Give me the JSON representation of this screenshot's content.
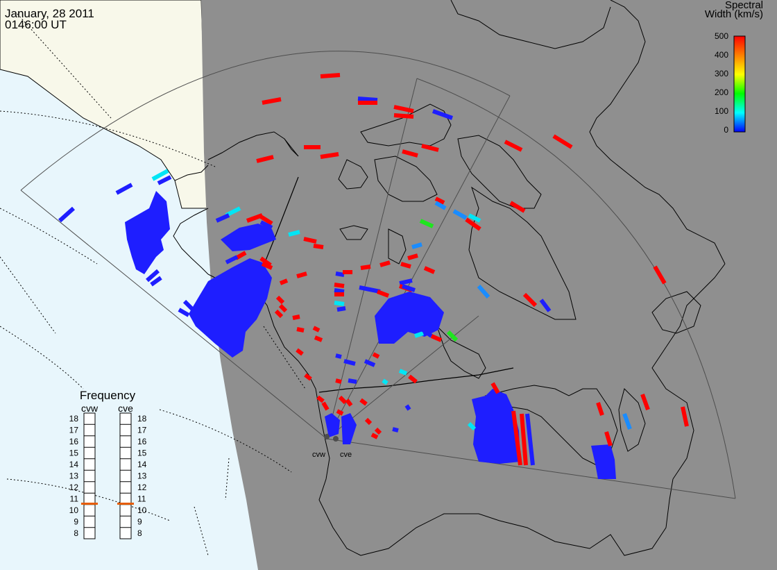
{
  "header": {
    "date": "January, 28 2011",
    "time": "0146:00 UT"
  },
  "colorbar": {
    "title_line1": "Spectral",
    "title_line2": "Width (km/s)",
    "ticks": [
      "500",
      "400",
      "300",
      "200",
      "100",
      "0"
    ],
    "stops": [
      "#ff0000",
      "#ff8000",
      "#ffff00",
      "#00ff00",
      "#00ffff",
      "#0000ff"
    ]
  },
  "frequency": {
    "title": "Frequency",
    "radars": [
      {
        "name": "cvw",
        "selected": "11"
      },
      {
        "name": "cve",
        "selected": "11"
      }
    ],
    "scale": [
      "18",
      "17",
      "16",
      "15",
      "14",
      "13",
      "12",
      "11",
      "10",
      "9",
      "8"
    ]
  },
  "radar_labels": [
    "cvw",
    "cve"
  ],
  "colors": {
    "ocean": "#e8f6fc",
    "land_lit": "#f8f8ea",
    "night": "#8f8f8f",
    "red": "#ff0000",
    "blue": "#1e1eff",
    "cyan": "#00e5f5",
    "azure": "#1a8cff",
    "green": "#1ee61e",
    "freq_marker": "#e65c00"
  }
}
